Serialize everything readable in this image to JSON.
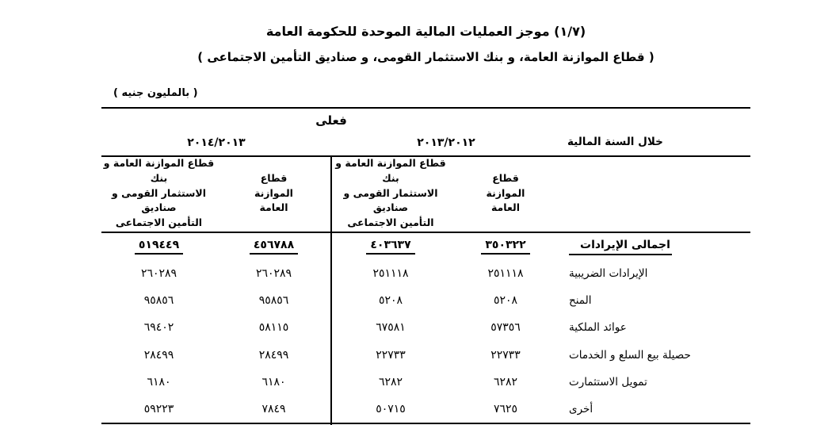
{
  "page": {
    "title": "(١/٧) موجز العمليات المالية الموحدة للحكومة العامة",
    "subtitle": "( قطاع الموازنة العامة، و بنك الاستثمار القومى، و صناديق التأمين الاجتماعى )",
    "unit_note": "( بالمليون جنيه )"
  },
  "colors": {
    "ink": "#000000",
    "background": "#ffffff"
  },
  "table": {
    "actual_label": "فعلى",
    "fiscal_year_label": "خلال السنة المالية",
    "year_groups": [
      {
        "year": "٢٠١٤/٢٠١٣"
      },
      {
        "year": "٢٠١٣/٢٠١٢"
      }
    ],
    "column_headers": {
      "combined_2013_2014": "قطاع الموازنة العامة و بنك\nالاستثمار القومى و صناديق\nالتأمين الاجتماعى",
      "budget_2013_2014": "قطاع\nالموازنة\nالعامة",
      "combined_2012_2013": "قطاع الموازنة العامة و بنك\nالاستثمار القومى و صناديق\nالتأمين الاجتماعى",
      "budget_2012_2013": "قطاع\nالموازنة\nالعامة"
    },
    "rows": [
      {
        "label": "اجمالى الإيرادات",
        "emphasis": true,
        "values": [
          "٥١٩٤٤٩",
          "٤٥٦٧٨٨",
          "٤٠٣٦٣٧",
          "٣٥٠٣٢٢"
        ]
      },
      {
        "label": "الإيرادات الضريبية",
        "emphasis": false,
        "values": [
          "٢٦٠٢٨٩",
          "٢٦٠٢٨٩",
          "٢٥١١١٨",
          "٢٥١١١٨"
        ]
      },
      {
        "label": "المنح",
        "emphasis": false,
        "values": [
          "٩٥٨٥٦",
          "٩٥٨٥٦",
          "٥٢٠٨",
          "٥٢٠٨"
        ]
      },
      {
        "label": "عوائد الملكية",
        "emphasis": false,
        "values": [
          "٦٩٤٠٢",
          "٥٨١١٥",
          "٦٧٥٨١",
          "٥٧٣٥٦"
        ]
      },
      {
        "label": "حصيلة بيع السلع و الخدمات",
        "emphasis": false,
        "values": [
          "٢٨٤٩٩",
          "٢٨٤٩٩",
          "٢٢٧٣٣",
          "٢٢٧٣٣"
        ]
      },
      {
        "label": "تمويل الاستثمارت",
        "emphasis": false,
        "values": [
          "٦١٨٠",
          "٦١٨٠",
          "٦٢٨٢",
          "٦٢٨٢"
        ]
      },
      {
        "label": "أخرى",
        "emphasis": false,
        "values": [
          "٥٩٢٢٣",
          "٧٨٤٩",
          "٥٠٧١٥",
          "٧٦٢٥"
        ]
      }
    ]
  }
}
